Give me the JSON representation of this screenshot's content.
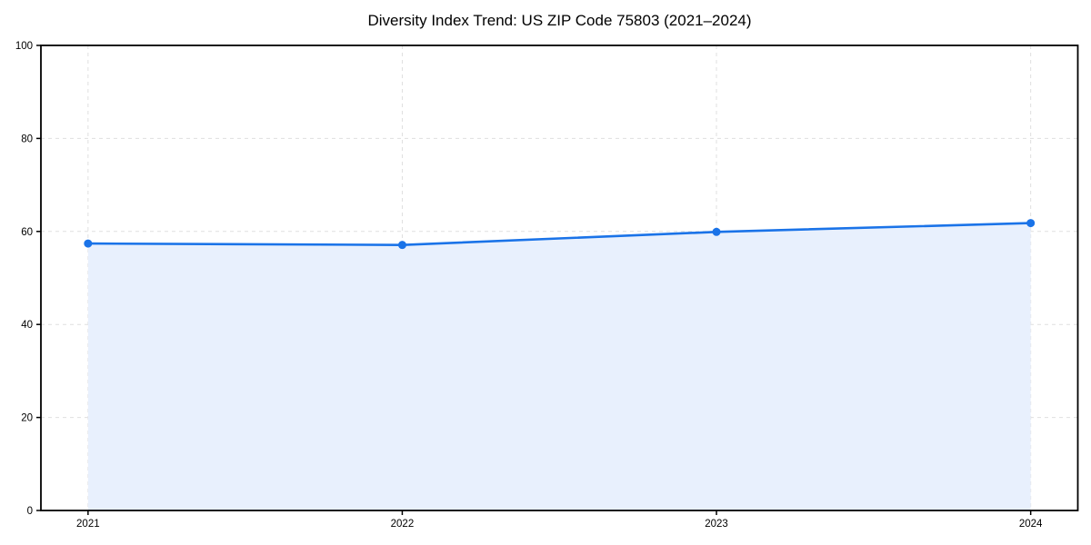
{
  "title": "Diversity Index Trend: US ZIP Code 75803 (2021–2024)",
  "colors": {
    "line": "#1a73e8",
    "marker": "#1a73e8",
    "area_fill": "#e8f0fd",
    "grid": "#dfdfdf",
    "axis": "#000000",
    "background": "#ffffff",
    "text": "#000000"
  },
  "chart_data": {
    "type": "line",
    "title": "Diversity Index Trend: US ZIP Code 75803 (2021–2024)",
    "x": [
      2021,
      2022,
      2023,
      2024
    ],
    "xticks": [
      "2021",
      "2022",
      "2023",
      "2024"
    ],
    "yticks": [
      "0",
      "20",
      "40",
      "60",
      "80",
      "100"
    ],
    "ytick_values": [
      0,
      20,
      40,
      60,
      80,
      100
    ],
    "ylim": [
      0,
      100
    ],
    "xlabel": "",
    "ylabel": "",
    "series": [
      {
        "name": "Diversity Index",
        "values": [
          57.4,
          57.1,
          59.9,
          61.8
        ]
      }
    ],
    "grid": true,
    "grid_style": "dashed",
    "area_fill": true,
    "markers": true,
    "legend_position": "none"
  }
}
